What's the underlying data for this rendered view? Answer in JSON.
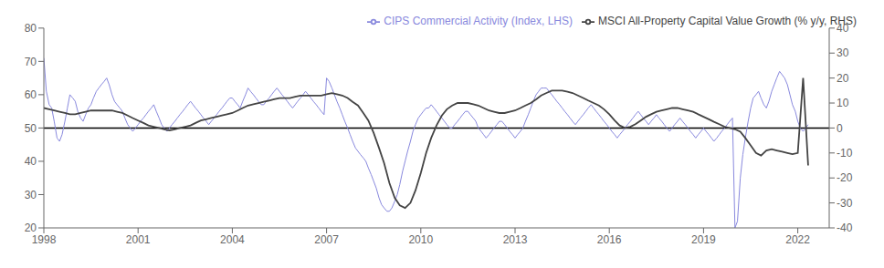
{
  "chart_data": {
    "type": "line",
    "series": [
      {
        "name": "CIPS Commercial Activity (Index, LHS)",
        "color": "#8888dd",
        "axis": "y",
        "x": [
          1998.0,
          1998.08,
          1998.17,
          1998.25,
          1998.33,
          1998.42,
          1998.5,
          1998.58,
          1998.67,
          1998.75,
          1998.83,
          1998.92,
          1999.0,
          1999.08,
          1999.17,
          1999.25,
          1999.33,
          1999.42,
          1999.5,
          1999.58,
          1999.67,
          1999.75,
          1999.83,
          1999.92,
          2000.0,
          2000.08,
          2000.17,
          2000.25,
          2000.33,
          2000.42,
          2000.5,
          2000.58,
          2000.67,
          2000.75,
          2000.83,
          2000.92,
          2001.0,
          2001.08,
          2001.17,
          2001.25,
          2001.33,
          2001.42,
          2001.5,
          2001.58,
          2001.67,
          2001.75,
          2001.83,
          2001.92,
          2002.0,
          2002.08,
          2002.17,
          2002.25,
          2002.33,
          2002.42,
          2002.5,
          2002.58,
          2002.67,
          2002.75,
          2002.83,
          2002.92,
          2003.0,
          2003.08,
          2003.17,
          2003.25,
          2003.33,
          2003.42,
          2003.5,
          2003.58,
          2003.67,
          2003.75,
          2003.83,
          2003.92,
          2004.0,
          2004.08,
          2004.17,
          2004.25,
          2004.33,
          2004.42,
          2004.5,
          2004.58,
          2004.67,
          2004.75,
          2004.83,
          2004.92,
          2005.0,
          2005.08,
          2005.17,
          2005.25,
          2005.33,
          2005.42,
          2005.5,
          2005.58,
          2005.67,
          2005.75,
          2005.83,
          2005.92,
          2006.0,
          2006.08,
          2006.17,
          2006.25,
          2006.33,
          2006.42,
          2006.5,
          2006.58,
          2006.67,
          2006.75,
          2006.83,
          2006.92,
          2007.0,
          2007.08,
          2007.17,
          2007.25,
          2007.33,
          2007.42,
          2007.5,
          2007.58,
          2007.67,
          2007.75,
          2007.83,
          2007.92,
          2008.0,
          2008.08,
          2008.17,
          2008.25,
          2008.33,
          2008.42,
          2008.5,
          2008.58,
          2008.67,
          2008.75,
          2008.83,
          2008.92,
          2009.0,
          2009.08,
          2009.17,
          2009.25,
          2009.33,
          2009.42,
          2009.5,
          2009.58,
          2009.67,
          2009.75,
          2009.83,
          2009.92,
          2010.0,
          2010.08,
          2010.17,
          2010.25,
          2010.33,
          2010.42,
          2010.5,
          2010.58,
          2010.67,
          2010.75,
          2010.83,
          2010.92,
          2011.0,
          2011.08,
          2011.17,
          2011.25,
          2011.33,
          2011.42,
          2011.5,
          2011.58,
          2011.67,
          2011.75,
          2011.83,
          2011.92,
          2012.0,
          2012.08,
          2012.17,
          2012.25,
          2012.33,
          2012.42,
          2012.5,
          2012.58,
          2012.67,
          2012.75,
          2012.83,
          2012.92,
          2013.0,
          2013.08,
          2013.17,
          2013.25,
          2013.33,
          2013.42,
          2013.5,
          2013.58,
          2013.67,
          2013.75,
          2013.83,
          2013.92,
          2014.0,
          2014.08,
          2014.17,
          2014.25,
          2014.33,
          2014.42,
          2014.5,
          2014.58,
          2014.67,
          2014.75,
          2014.83,
          2014.92,
          2015.0,
          2015.08,
          2015.17,
          2015.25,
          2015.33,
          2015.42,
          2015.5,
          2015.58,
          2015.67,
          2015.75,
          2015.83,
          2015.92,
          2016.0,
          2016.08,
          2016.17,
          2016.25,
          2016.33,
          2016.42,
          2016.5,
          2016.58,
          2016.67,
          2016.75,
          2016.83,
          2016.92,
          2017.0,
          2017.08,
          2017.17,
          2017.25,
          2017.33,
          2017.42,
          2017.5,
          2017.58,
          2017.67,
          2017.75,
          2017.83,
          2017.92,
          2018.0,
          2018.08,
          2018.17,
          2018.25,
          2018.33,
          2018.42,
          2018.5,
          2018.58,
          2018.67,
          2018.75,
          2018.83,
          2018.92,
          2019.0,
          2019.08,
          2019.17,
          2019.25,
          2019.33,
          2019.42,
          2019.5,
          2019.58,
          2019.67,
          2019.75,
          2019.83,
          2019.92,
          2020.0,
          2020.08,
          2020.17,
          2020.25,
          2020.33,
          2020.42,
          2020.5,
          2020.58,
          2020.67,
          2020.75,
          2020.83,
          2020.92,
          2021.0,
          2021.08,
          2021.17,
          2021.25,
          2021.33,
          2021.42,
          2021.5,
          2021.58,
          2021.67,
          2021.75,
          2021.83,
          2021.92,
          2022.0,
          2022.08,
          2022.17,
          2022.25,
          2022.33
        ],
        "values": [
          71,
          61,
          57,
          56,
          52,
          47,
          46,
          48,
          52,
          56,
          60,
          59,
          58,
          55,
          53,
          52,
          54,
          56,
          57,
          59,
          61,
          62,
          63,
          64,
          65,
          63,
          60,
          58,
          57,
          56,
          55,
          53,
          51,
          50,
          49,
          50,
          51,
          52,
          53,
          54,
          55,
          56,
          57,
          55,
          53,
          51,
          50,
          49,
          50,
          51,
          52,
          53,
          54,
          55,
          56,
          57,
          58,
          57,
          56,
          55,
          54,
          53,
          52,
          51,
          52,
          53,
          54,
          55,
          56,
          57,
          58,
          59,
          59,
          58,
          57,
          56,
          58,
          60,
          62,
          61,
          60,
          59,
          58,
          57,
          57,
          58,
          59,
          60,
          61,
          62,
          61,
          60,
          59,
          58,
          57,
          56,
          57,
          58,
          59,
          60,
          61,
          60,
          59,
          58,
          57,
          56,
          55,
          54,
          65,
          64,
          62,
          60,
          58,
          56,
          54,
          52,
          50,
          48,
          46,
          44,
          43,
          42,
          41,
          40,
          38,
          36,
          34,
          32,
          29,
          27,
          26,
          25,
          25,
          26,
          28,
          30,
          33,
          37,
          40,
          43,
          46,
          49,
          51,
          53,
          54,
          55,
          56,
          56,
          57,
          56,
          55,
          54,
          53,
          52,
          51,
          50,
          50,
          51,
          52,
          53,
          54,
          55,
          55,
          54,
          53,
          52,
          50,
          49,
          48,
          47,
          48,
          49,
          50,
          51,
          52,
          52,
          51,
          50,
          49,
          48,
          47,
          48,
          49,
          50,
          52,
          54,
          56,
          58,
          60,
          61,
          62,
          62,
          62,
          61,
          60,
          59,
          58,
          57,
          56,
          55,
          54,
          53,
          52,
          51,
          52,
          53,
          54,
          55,
          56,
          57,
          56,
          55,
          54,
          53,
          52,
          51,
          50,
          49,
          48,
          47,
          48,
          49,
          50,
          51,
          52,
          53,
          54,
          55,
          54,
          53,
          52,
          51,
          52,
          53,
          54,
          53,
          52,
          51,
          50,
          49,
          50,
          51,
          52,
          53,
          52,
          51,
          50,
          49,
          48,
          47,
          48,
          49,
          50,
          49,
          48,
          47,
          46,
          47,
          48,
          49,
          50,
          51,
          52,
          53,
          20,
          22,
          35,
          42,
          47,
          52,
          56,
          59,
          60,
          61,
          59,
          57,
          56,
          58,
          61,
          63,
          65,
          67,
          66,
          65,
          63,
          60,
          57,
          55,
          52,
          50,
          49,
          50,
          51
        ]
      },
      {
        "name": "MSCI All-Property Capital Value Growth (% y/y, RHS)",
        "color": "#444444",
        "axis": "y2",
        "x": [
          1998.0,
          1998.17,
          1998.33,
          1998.5,
          1998.67,
          1998.83,
          1999.0,
          1999.17,
          1999.33,
          1999.5,
          1999.67,
          1999.83,
          2000.0,
          2000.17,
          2000.33,
          2000.5,
          2000.67,
          2000.83,
          2001.0,
          2001.17,
          2001.33,
          2001.5,
          2001.67,
          2001.83,
          2002.0,
          2002.17,
          2002.33,
          2002.5,
          2002.67,
          2002.83,
          2003.0,
          2003.17,
          2003.33,
          2003.5,
          2003.67,
          2003.83,
          2004.0,
          2004.17,
          2004.33,
          2004.5,
          2004.67,
          2004.83,
          2005.0,
          2005.17,
          2005.33,
          2005.5,
          2005.67,
          2005.83,
          2006.0,
          2006.17,
          2006.33,
          2006.5,
          2006.67,
          2006.83,
          2007.0,
          2007.17,
          2007.33,
          2007.5,
          2007.67,
          2007.83,
          2008.0,
          2008.17,
          2008.33,
          2008.5,
          2008.67,
          2008.83,
          2009.0,
          2009.17,
          2009.33,
          2009.5,
          2009.67,
          2009.83,
          2010.0,
          2010.17,
          2010.33,
          2010.5,
          2010.67,
          2010.83,
          2011.0,
          2011.17,
          2011.33,
          2011.5,
          2011.67,
          2011.83,
          2012.0,
          2012.17,
          2012.33,
          2012.5,
          2012.67,
          2012.83,
          2013.0,
          2013.17,
          2013.33,
          2013.5,
          2013.67,
          2013.83,
          2014.0,
          2014.17,
          2014.33,
          2014.5,
          2014.67,
          2014.83,
          2015.0,
          2015.17,
          2015.33,
          2015.5,
          2015.67,
          2015.83,
          2016.0,
          2016.17,
          2016.33,
          2016.5,
          2016.67,
          2016.83,
          2017.0,
          2017.17,
          2017.33,
          2017.5,
          2017.67,
          2017.83,
          2018.0,
          2018.17,
          2018.33,
          2018.5,
          2018.67,
          2018.83,
          2019.0,
          2019.17,
          2019.33,
          2019.5,
          2019.67,
          2019.83,
          2020.0,
          2020.17,
          2020.33,
          2020.5,
          2020.67,
          2020.83,
          2021.0,
          2021.17,
          2021.33,
          2021.5,
          2021.67,
          2021.83,
          2022.0,
          2022.17,
          2022.33
        ],
        "values": [
          8.0,
          7.5,
          7.0,
          6.5,
          6.0,
          5.5,
          5.5,
          6.0,
          6.5,
          7.0,
          7.0,
          7.0,
          7.0,
          7.0,
          6.5,
          6.0,
          5.0,
          4.0,
          3.0,
          2.0,
          1.0,
          0.5,
          0.0,
          -0.5,
          -1.0,
          -0.5,
          0.0,
          0.5,
          1.0,
          2.0,
          3.0,
          3.5,
          4.0,
          4.5,
          5.0,
          5.5,
          6.0,
          7.0,
          8.0,
          9.0,
          9.5,
          10.0,
          10.5,
          11.0,
          11.5,
          12.0,
          12.0,
          12.0,
          12.5,
          13.0,
          13.0,
          13.0,
          13.0,
          13.0,
          13.5,
          14.0,
          13.5,
          13.0,
          12.0,
          10.5,
          9.0,
          6.0,
          3.0,
          -2.0,
          -8.0,
          -14.0,
          -22.0,
          -28.0,
          -31.0,
          -32.0,
          -30.0,
          -25.0,
          -18.0,
          -10.0,
          -4.0,
          1.0,
          5.0,
          7.5,
          9.0,
          10.0,
          10.0,
          10.0,
          9.5,
          9.0,
          8.0,
          7.0,
          6.5,
          6.0,
          6.0,
          6.5,
          7.0,
          8.0,
          9.0,
          10.0,
          11.5,
          13.0,
          14.0,
          15.0,
          15.0,
          15.0,
          14.5,
          14.0,
          13.0,
          12.0,
          11.0,
          10.0,
          9.0,
          7.5,
          5.5,
          3.0,
          1.0,
          0.0,
          0.5,
          1.5,
          3.0,
          4.5,
          5.5,
          6.5,
          7.0,
          7.5,
          8.0,
          8.0,
          7.5,
          7.0,
          6.5,
          5.5,
          4.5,
          3.5,
          2.5,
          1.5,
          0.5,
          0.0,
          -0.5,
          -1.5,
          -4.0,
          -7.0,
          -10.0,
          -11.0,
          -9.0,
          -8.5,
          -9.0,
          -9.5,
          -10.0,
          -10.5,
          -10.0,
          20.0,
          -15.0
        ]
      }
    ],
    "reference_lines": [
      {
        "y": 50,
        "color": "black"
      }
    ],
    "xlim": [
      1998,
      2023.0
    ],
    "xticks": [
      1998,
      2001,
      2004,
      2007,
      2010,
      2013,
      2016,
      2019,
      2022
    ],
    "ylim": [
      20,
      80
    ],
    "yticks": [
      20,
      30,
      40,
      50,
      60,
      70,
      80
    ],
    "y2lim": [
      -40,
      40
    ],
    "y2ticks": [
      -40,
      -30,
      -20,
      -10,
      0,
      10,
      20,
      30,
      40
    ],
    "grid": false,
    "legend": "upper right"
  }
}
